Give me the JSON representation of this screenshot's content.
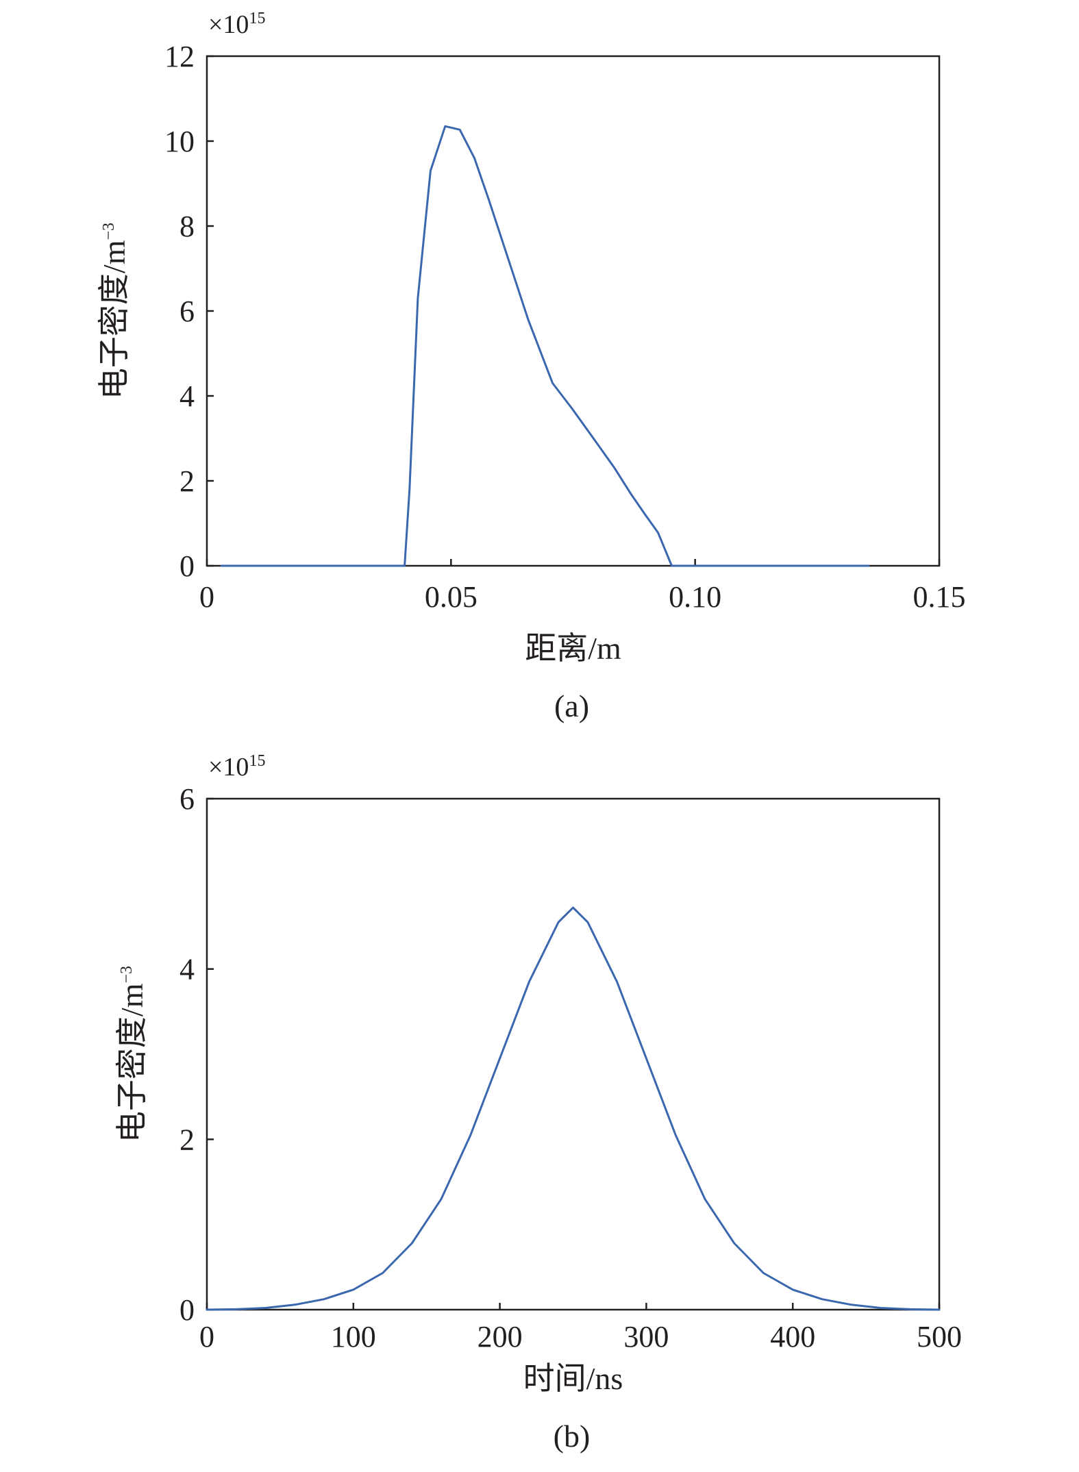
{
  "chart_data": [
    {
      "type": "line",
      "caption": "(a)",
      "xlabel": "距离/m",
      "ylabel": "电子密度/m",
      "ylabel_sup": "−3",
      "y_multiplier": "×10",
      "y_multiplier_exp": "15",
      "xlim": [
        0,
        0.15
      ],
      "ylim": [
        0,
        12
      ],
      "xticks": [
        0,
        0.05,
        0.1,
        0.15
      ],
      "xtick_labels": [
        "0",
        "0.05",
        "0.10",
        "0.15"
      ],
      "yticks": [
        0,
        2,
        4,
        6,
        8,
        10,
        12
      ],
      "ytick_labels": [
        "0",
        "2",
        "4",
        "6",
        "8",
        "10",
        "12"
      ],
      "grid": false,
      "color": "#3a67ad",
      "series": [
        {
          "x": [
            0.003,
            0.0405,
            0.0415,
            0.0432,
            0.0458,
            0.0488,
            0.0518,
            0.0548,
            0.0578,
            0.0618,
            0.0658,
            0.0708,
            0.0748,
            0.0798,
            0.0835,
            0.0868,
            0.0898,
            0.0924,
            0.0952,
            0.1,
            0.11,
            0.12,
            0.1355
          ],
          "y": [
            0,
            0,
            1.8,
            6.3,
            9.3,
            10.35,
            10.27,
            9.6,
            8.6,
            7.2,
            5.8,
            4.3,
            3.7,
            2.9,
            2.3,
            1.7,
            1.2,
            0.78,
            0,
            0,
            0,
            0,
            0
          ]
        }
      ]
    },
    {
      "type": "line",
      "caption": "(b)",
      "xlabel": "时间/ns",
      "ylabel": "电子密度/m",
      "ylabel_sup": "−3",
      "y_multiplier": "×10",
      "y_multiplier_exp": "15",
      "xlim": [
        0,
        500
      ],
      "ylim": [
        0,
        6
      ],
      "xticks": [
        0,
        100,
        200,
        300,
        400,
        500
      ],
      "xtick_labels": [
        "0",
        "100",
        "200",
        "300",
        "400",
        "500"
      ],
      "yticks": [
        0,
        2,
        4,
        6
      ],
      "ytick_labels": [
        "0",
        "2",
        "4",
        "6"
      ],
      "grid": false,
      "color": "#3a67ad",
      "series": [
        {
          "x": [
            0,
            20,
            40,
            60,
            80,
            100,
            120,
            140,
            160,
            180,
            200,
            220,
            240,
            250,
            260,
            280,
            300,
            320,
            340,
            360,
            380,
            400,
            420,
            440,
            460,
            480,
            500
          ],
          "y": [
            0.0,
            0.005,
            0.02,
            0.058,
            0.123,
            0.235,
            0.43,
            0.78,
            1.3,
            2.05,
            2.95,
            3.85,
            4.55,
            4.72,
            4.55,
            3.85,
            2.95,
            2.05,
            1.3,
            0.78,
            0.43,
            0.235,
            0.123,
            0.058,
            0.02,
            0.005,
            0.0
          ]
        }
      ]
    }
  ]
}
